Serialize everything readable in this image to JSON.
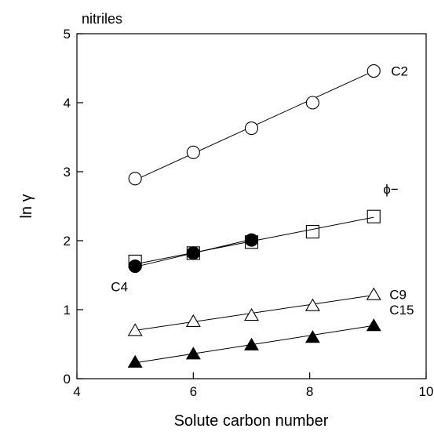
{
  "chart_data": {
    "type": "scatter",
    "title": "nitriles",
    "xlabel": "Solute carbon number",
    "ylabel": "ln γ",
    "xlim": [
      4,
      10
    ],
    "ylim": [
      0,
      5
    ],
    "xticks": [
      4,
      6,
      8,
      10
    ],
    "yticks": [
      0,
      1,
      2,
      3,
      4,
      5
    ],
    "grid": false,
    "legend": "none",
    "series": [
      {
        "name": "C2",
        "marker": "circle-open",
        "x": [
          5,
          6,
          7,
          8.05,
          9.1
        ],
        "y": [
          2.9,
          3.28,
          3.63,
          4.0,
          4.46
        ],
        "fit": [
          [
            5,
            2.88
          ],
          [
            9.1,
            4.46
          ]
        ]
      },
      {
        "name": "ϕ−",
        "marker": "square-open",
        "x": [
          5,
          6,
          7,
          8.05,
          9.1
        ],
        "y": [
          1.7,
          1.82,
          1.98,
          2.13,
          2.35
        ],
        "fit": [
          [
            5,
            1.66
          ],
          [
            9.1,
            2.34
          ]
        ]
      },
      {
        "name": "C4",
        "marker": "circle-filled",
        "x": [
          5,
          6,
          7
        ],
        "y": [
          1.63,
          1.82,
          2.01
        ],
        "fit": [
          [
            5,
            1.62
          ],
          [
            7,
            2.02
          ]
        ]
      },
      {
        "name": "C9",
        "marker": "triangle-open",
        "x": [
          5,
          6,
          7,
          8.05,
          9.1
        ],
        "y": [
          0.7,
          0.83,
          0.92,
          1.06,
          1.22
        ],
        "fit": [
          [
            5,
            0.7
          ],
          [
            9.1,
            1.21
          ]
        ]
      },
      {
        "name": "C15",
        "marker": "triangle-filled",
        "x": [
          5,
          6,
          7,
          8.05,
          9.1
        ],
        "y": [
          0.24,
          0.36,
          0.49,
          0.6,
          0.77
        ],
        "fit": [
          [
            5,
            0.23
          ],
          [
            9.1,
            0.77
          ]
        ]
      }
    ]
  }
}
